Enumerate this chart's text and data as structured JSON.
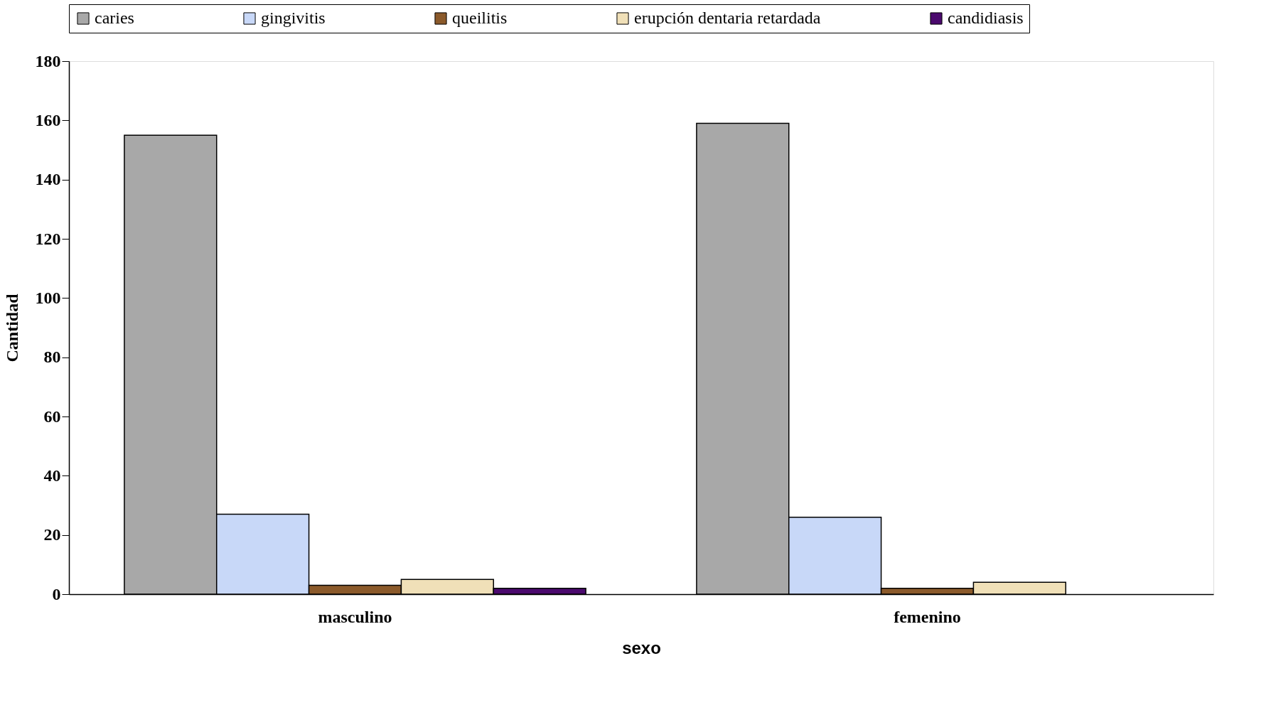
{
  "chart_data": {
    "type": "bar",
    "xlabel": "sexo",
    "ylabel": "Cantidad",
    "categories": [
      "masculino",
      "femenino"
    ],
    "series": [
      {
        "name": "caries",
        "color": "#a8a8a8",
        "values": [
          155,
          159
        ]
      },
      {
        "name": "gingivitis",
        "color": "#c8d8f8",
        "values": [
          27,
          26
        ]
      },
      {
        "name": "queilitis",
        "color": "#8b5a2b",
        "values": [
          3,
          2
        ]
      },
      {
        "name": "erupción dentaria retardada",
        "color": "#f0e0b8",
        "values": [
          5,
          4
        ]
      },
      {
        "name": "candidiasis",
        "color": "#4b0a6e",
        "values": [
          2,
          null
        ]
      }
    ],
    "ylim": [
      0,
      180
    ],
    "yticks": [
      0,
      20,
      40,
      60,
      80,
      100,
      120,
      140,
      160,
      180
    ],
    "grid": false,
    "legend": "top"
  }
}
